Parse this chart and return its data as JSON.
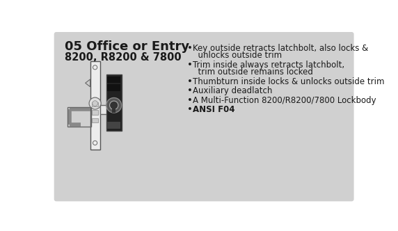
{
  "bg_color": "#d0d0d0",
  "outer_bg": "#ffffff",
  "title": "05 Office or Entry",
  "subtitle": "8200, R8200 & 7800",
  "title_fontsize": 13,
  "subtitle_fontsize": 10.5,
  "bullet_fontsize": 8.5,
  "bullets": [
    [
      "Key outside retracts latchbolt, also locks &",
      "  unlocks outside trim"
    ],
    [
      "Trim inside always retracts latchbolt,",
      "  trim outside remains locked"
    ],
    [
      "Thumbturn inside locks & unlocks outside trim"
    ],
    [
      "Auxiliary deadlatch"
    ],
    [
      "A Multi-Function 8200/R8200/7800 Lockbody"
    ],
    [
      "ANSI F04"
    ]
  ],
  "bullet_bold_last": true,
  "text_color": "#1a1a1a"
}
